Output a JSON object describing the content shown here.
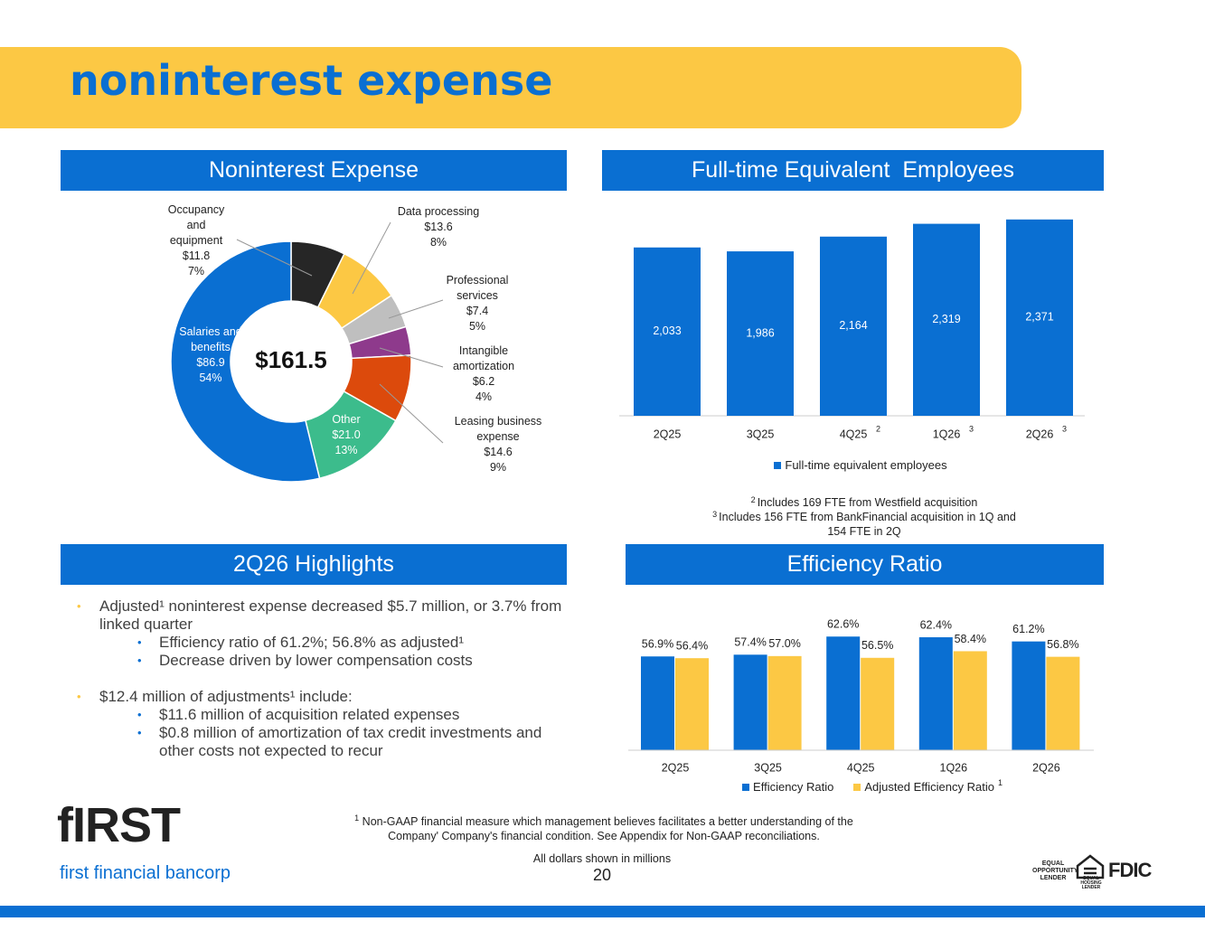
{
  "title": "noninterest expense",
  "chart_data": [
    {
      "type": "donut",
      "title": "Noninterest Expense",
      "total_label": "$161.5",
      "categories": [
        "Occupancy and equipment",
        "Data processing",
        "Professional services",
        "Intangible amortization",
        "Leasing business expense",
        "Other",
        "Salaries and benefits"
      ],
      "values": [
        11.8,
        13.6,
        7.4,
        6.2,
        14.6,
        21.0,
        86.9
      ],
      "value_labels": [
        "$11.8",
        "$13.6",
        "$7.4",
        "$6.2",
        "$14.6",
        "$21.0",
        "$86.9"
      ],
      "shares": [
        7,
        8,
        5,
        4,
        9,
        13,
        54
      ],
      "share_labels": [
        "7%",
        "8%",
        "5%",
        "4%",
        "9%",
        "13%",
        "54%"
      ],
      "colors": [
        "#262626",
        "#fcc844",
        "#bfbfbf",
        "#8e3a8c",
        "#dc4a0c",
        "#3cbc8c",
        "#0a6fd2"
      ]
    },
    {
      "type": "bar",
      "title": "Full-time Equivalent  Employees",
      "categories": [
        "2Q25",
        "3Q25",
        "4Q25",
        "1Q26",
        "2Q26"
      ],
      "category_notes": [
        null,
        null,
        "2",
        "3",
        "3"
      ],
      "series": [
        {
          "name": "Full-time equivalent employees",
          "color": "#0a6fd2",
          "values": [
            2033,
            1986,
            2164,
            2319,
            2371
          ],
          "value_labels": [
            "2,033",
            "1,986",
            "2,164",
            "2,319",
            "2,371"
          ]
        }
      ],
      "ylim": [
        0,
        2500
      ],
      "notes": [
        {
          "note": "2",
          "text": "Includes 169 FTE from Westfield acquisition"
        },
        {
          "note": "3",
          "text": "Includes 156 FTE from BankFinancial acquisition in 1Q and 154 FTE in 2Q"
        }
      ]
    },
    {
      "type": "grouped_bar",
      "title": "Efficiency Ratio",
      "categories": [
        "2Q25",
        "3Q25",
        "4Q25",
        "1Q26",
        "2Q26"
      ],
      "series": [
        {
          "name": "Efficiency Ratio",
          "color": "#0a6fd2",
          "values": [
            56.9,
            57.4,
            62.6,
            62.4,
            61.2
          ],
          "value_labels": [
            "56.9%",
            "57.4%",
            "62.6%",
            "62.4%",
            "61.2%"
          ]
        },
        {
          "name": "Adjusted Efficiency Ratio",
          "note": "1",
          "color": "#fcc844",
          "values": [
            56.4,
            57.0,
            56.5,
            58.4,
            56.8
          ],
          "value_labels": [
            "56.4%",
            "57.0%",
            "56.5%",
            "58.4%",
            "56.8%"
          ]
        }
      ],
      "ylim": [
        30,
        65
      ]
    }
  ],
  "highlights": {
    "title": "2Q26 Highlights",
    "items": [
      {
        "text": "Adjusted¹ noninterest expense decreased $5.7 million, or 3.7% from linked quarter",
        "sub": [
          "Efficiency ratio of 61.2%; 56.8% as adjusted¹",
          "Decrease driven by lower compensation costs"
        ]
      },
      {
        "text": "$12.4 million of adjustments¹ include:",
        "sub": [
          "$11.6 million of acquisition related expenses",
          "$0.8 million of amortization of tax credit investments and other costs not expected to recur"
        ]
      }
    ]
  },
  "footer": {
    "note": "1",
    "note_text": "Non-GAAP financial measure which management believes facilitates a better understanding of the Company' Company's financial condition.  See Appendix for Non-GAAP reconciliations.",
    "dollars_note": "All dollars shown in millions",
    "page": "20",
    "logo": "fIRST",
    "company": "first financial bancorp",
    "badges": {
      "eol": "EQUAL OPPORTUNITY LENDER",
      "ehl": "EQUAL HOUSING LENDER",
      "fdic": "FDIC"
    }
  }
}
